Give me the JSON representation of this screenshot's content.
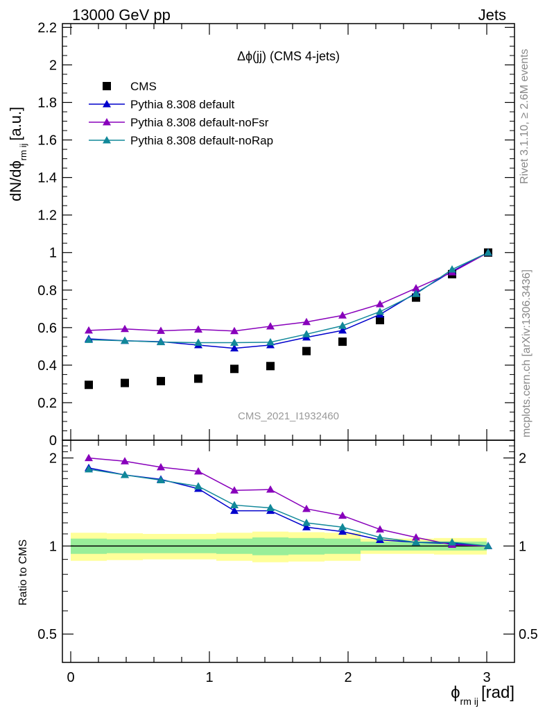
{
  "header": {
    "left": "13000 GeV pp",
    "right": "Jets"
  },
  "side_labels": {
    "rivet": "Rivet 3.1.10, ≥ 2.6M events",
    "mcplots": "mcplots.cern.ch [arXiv:1306.3436]"
  },
  "chart_data": [
    {
      "type": "scatter",
      "panel": "main",
      "title": "Δϕ(jj) (CMS 4-jets)",
      "watermark": "CMS_2021_I1932460",
      "xlabel": "ϕ",
      "xlabel_sub": "rm ij",
      "xlabel_unit": "[rad]",
      "ylabel": "dN/dϕ",
      "ylabel_sub": "rm ij",
      "ylabel_unit": "[a.u.]",
      "xlim": [
        -0.06,
        3.2
      ],
      "ylim": [
        0,
        2.22
      ],
      "yticks": [
        "0",
        "0.2",
        "0.4",
        "0.6",
        "0.8",
        "1",
        "1.2",
        "1.4",
        "1.6",
        "1.8",
        "2",
        "2.2"
      ],
      "xticks": [
        "0",
        "1",
        "2",
        "3"
      ],
      "legend_position": "top-left",
      "x": [
        0.13,
        0.39,
        0.65,
        0.92,
        1.18,
        1.44,
        1.7,
        1.96,
        2.23,
        2.49,
        2.75,
        3.01
      ],
      "series": [
        {
          "name": "CMS",
          "color": "#000000",
          "marker": "square",
          "values": [
            0.295,
            0.305,
            0.315,
            0.328,
            0.38,
            0.395,
            0.475,
            0.525,
            0.64,
            0.76,
            0.885,
            1.0
          ]
        },
        {
          "name": "Pythia 8.308 default",
          "color": "#0000cc",
          "marker": "triangle",
          "values": [
            0.54,
            0.53,
            0.525,
            0.507,
            0.49,
            0.507,
            0.548,
            0.585,
            0.67,
            0.785,
            0.9,
            1.0
          ]
        },
        {
          "name": "Pythia 8.308 default-noFsr",
          "color": "#8800bb",
          "marker": "triangle",
          "values": [
            0.585,
            0.593,
            0.583,
            0.59,
            0.582,
            0.607,
            0.63,
            0.665,
            0.725,
            0.81,
            0.895,
            1.0
          ]
        },
        {
          "name": "Pythia 8.308 default-noRap",
          "color": "#118899",
          "marker": "triangle",
          "values": [
            0.535,
            0.53,
            0.523,
            0.52,
            0.52,
            0.522,
            0.565,
            0.61,
            0.685,
            0.78,
            0.91,
            1.0
          ]
        }
      ]
    },
    {
      "type": "line",
      "panel": "ratio",
      "ylabel": "Ratio to CMS",
      "ylim": [
        0.4,
        2.3
      ],
      "log_y": true,
      "yticks": [
        "0.5",
        "1",
        "2"
      ],
      "x": [
        0.13,
        0.39,
        0.65,
        0.92,
        1.18,
        1.44,
        1.7,
        1.96,
        2.23,
        2.49,
        2.75,
        3.01
      ],
      "bin_edges": [
        0.0,
        0.26,
        0.52,
        0.79,
        1.05,
        1.31,
        1.57,
        1.83,
        2.09,
        2.36,
        2.62,
        2.88,
        3.0
      ],
      "band_inner": [
        0.06,
        0.055,
        0.055,
        0.055,
        0.06,
        0.07,
        0.065,
        0.06,
        0.035,
        0.035,
        0.035,
        0.035
      ],
      "band_outer": [
        0.11,
        0.105,
        0.1,
        0.1,
        0.11,
        0.12,
        0.115,
        0.11,
        0.06,
        0.06,
        0.065,
        0.065
      ],
      "band_colors": {
        "inner": "#99ee99",
        "outer": "#ffff99"
      },
      "series": [
        {
          "name": "Pythia 8.308 default",
          "color": "#0000cc",
          "values": [
            1.85,
            1.75,
            1.69,
            1.57,
            1.32,
            1.32,
            1.16,
            1.12,
            1.05,
            1.03,
            1.02,
            1.0
          ]
        },
        {
          "name": "Pythia 8.308 default-noFsr",
          "color": "#8800bb",
          "values": [
            2.0,
            1.95,
            1.86,
            1.8,
            1.55,
            1.56,
            1.34,
            1.27,
            1.14,
            1.07,
            1.01,
            1.0
          ]
        },
        {
          "name": "Pythia 8.308 default-noRap",
          "color": "#118899",
          "values": [
            1.83,
            1.75,
            1.68,
            1.6,
            1.38,
            1.35,
            1.2,
            1.16,
            1.07,
            1.03,
            1.03,
            1.0
          ]
        }
      ]
    }
  ]
}
